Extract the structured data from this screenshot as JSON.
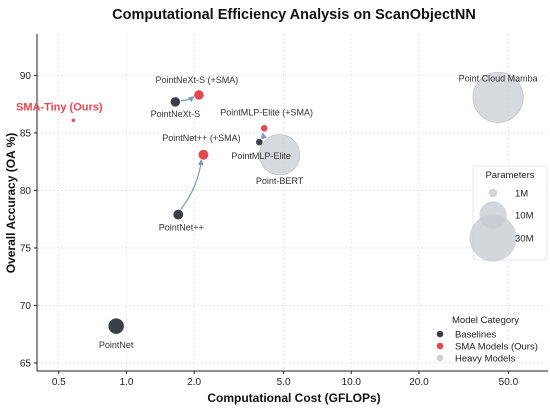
{
  "chart_data": {
    "type": "scatter",
    "title": "Computational Efficiency Analysis on ScanObjectNN",
    "xlabel": "Computational Cost (GFLOPs)",
    "ylabel": "Overall Accuracy (OA %)",
    "xscale": "log",
    "xlim": [
      0.4,
      75
    ],
    "ylim": [
      64.3,
      93.6
    ],
    "x_ticks": [
      0.5,
      1.0,
      2.0,
      5.0,
      10.0,
      20.0,
      50.0
    ],
    "x_tick_labels": [
      "0.5",
      "1.0",
      "2.0",
      "5.0",
      "10.0",
      "20.0",
      "50.0"
    ],
    "y_ticks": [
      65,
      70,
      75,
      80,
      85,
      90
    ],
    "y_tick_labels": [
      "65",
      "70",
      "75",
      "80",
      "85",
      "90"
    ],
    "grid": true,
    "points": [
      {
        "label": "PointNet",
        "x": 0.9,
        "y": 68.2,
        "params_m": 3.5,
        "category": "baseline"
      },
      {
        "label": "PointNet++",
        "x": 1.7,
        "y": 77.9,
        "params_m": 1.5,
        "category": "baseline"
      },
      {
        "label": "PointNet++ (+SMA)",
        "x": 2.2,
        "y": 83.1,
        "params_m": 1.5,
        "category": "sma"
      },
      {
        "label": "PointNeXt-S",
        "x": 1.65,
        "y": 87.7,
        "params_m": 1.4,
        "category": "baseline"
      },
      {
        "label": "PointNeXt-S (+SMA)",
        "x": 2.1,
        "y": 88.3,
        "params_m": 1.4,
        "category": "sma"
      },
      {
        "label": "PointMLP-Elite",
        "x": 3.9,
        "y": 84.2,
        "params_m": 0.7,
        "category": "baseline"
      },
      {
        "label": "PointMLP-Elite (+SMA)",
        "x": 4.1,
        "y": 85.4,
        "params_m": 0.7,
        "category": "sma"
      },
      {
        "label": "Point-BERT",
        "x": 4.8,
        "y": 83.1,
        "params_m": 22.1,
        "category": "heavy"
      },
      {
        "label": "Point Cloud Mamba",
        "x": 45,
        "y": 88.1,
        "params_m": 34.2,
        "category": "heavy"
      },
      {
        "label": "SMA-Tiny (Ours)",
        "x": 0.58,
        "y": 86.1,
        "params_m": 0.05,
        "category": "sma"
      }
    ],
    "arrows": [
      {
        "from": "PointNet++",
        "to": "PointNet++ (+SMA)"
      },
      {
        "from": "PointNeXt-S",
        "to": "PointNeXt-S (+SMA)"
      },
      {
        "from": "PointMLP-Elite",
        "to": "PointMLP-Elite (+SMA)"
      }
    ],
    "legend_category": {
      "title": "Model Category",
      "placement": "lower-right",
      "items": [
        {
          "label": "Baselines",
          "color": "#3a3f4a"
        },
        {
          "label": "SMA Models (Ours)",
          "color": "#e8474f"
        },
        {
          "label": "Heavy Models",
          "color": "#cdd1d6"
        }
      ]
    },
    "legend_params": {
      "title": "Parameters",
      "placement": "right",
      "items": [
        {
          "label": "1M",
          "params_m": 1
        },
        {
          "label": "10M",
          "params_m": 10
        },
        {
          "label": "30M",
          "params_m": 30
        }
      ]
    },
    "colors": {
      "baseline": "#3a3f4a",
      "sma": "#e8474f",
      "heavy": "#c8ccd2",
      "arrow": "#7a9cc0"
    }
  }
}
